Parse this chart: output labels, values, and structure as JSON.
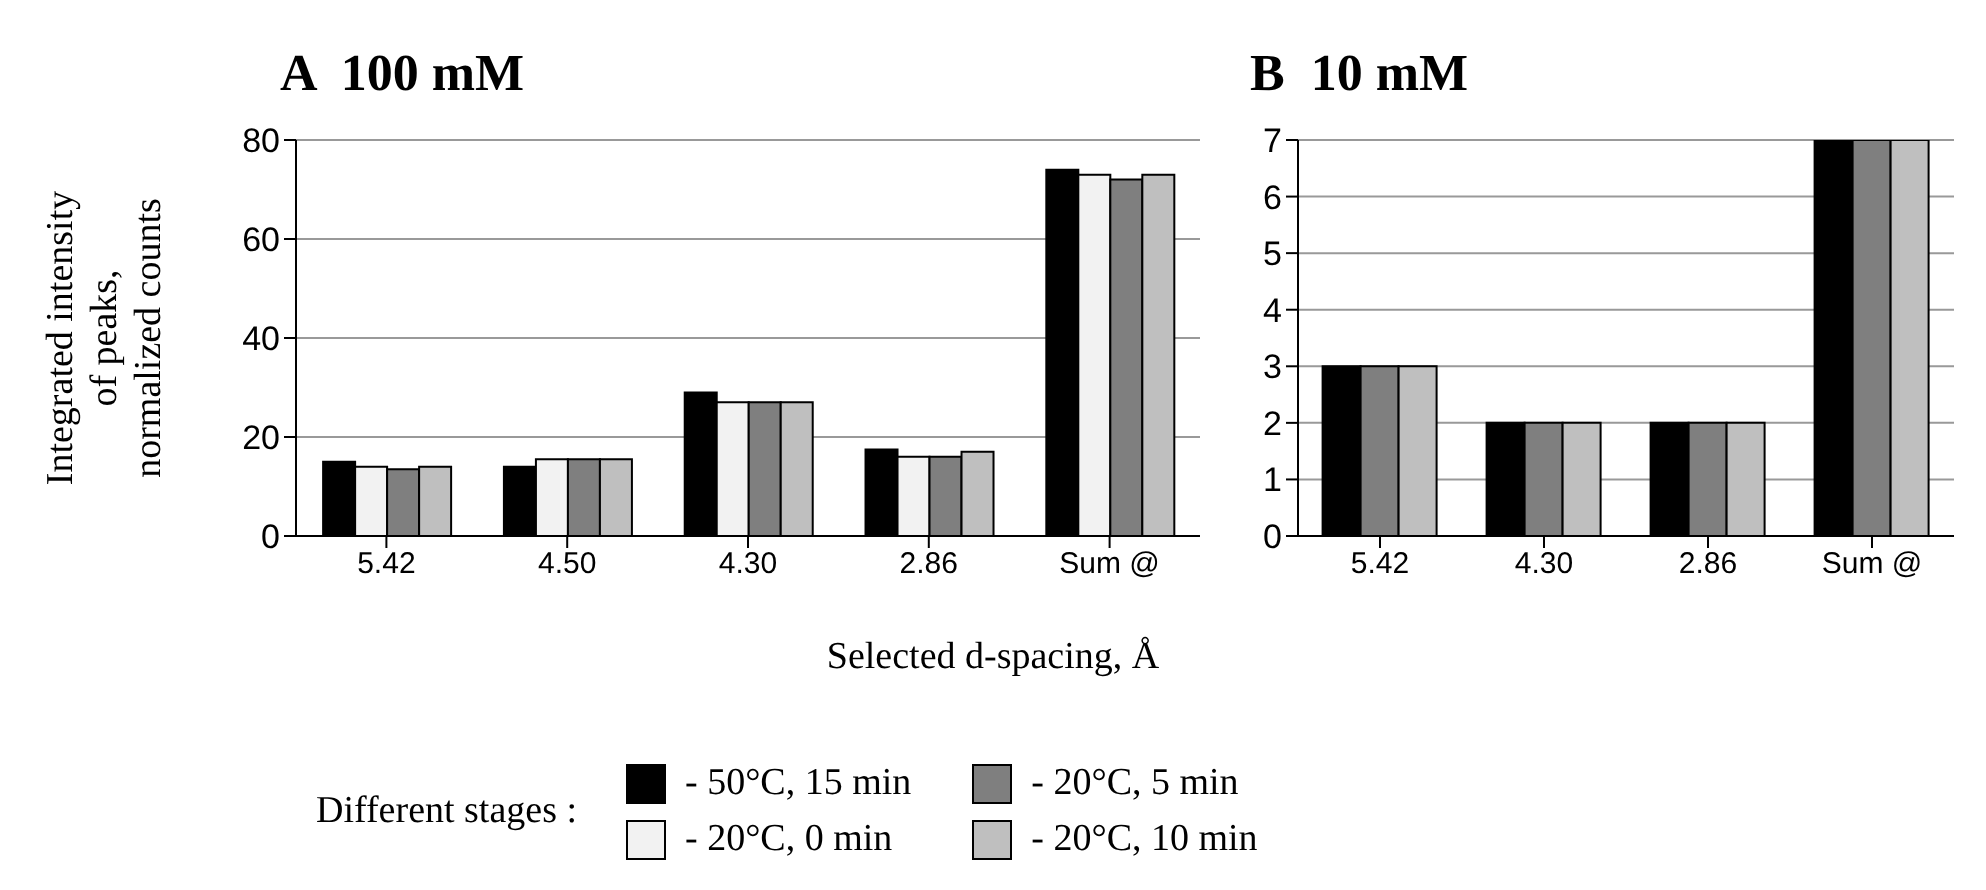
{
  "chart_data": [
    {
      "type": "bar",
      "title": "A  100 mM",
      "ylabel": "Integrated intensity\nof peaks,\nnormalized counts",
      "xlabel": "Selected d-spacing, Å",
      "legend_title": "Different stages :",
      "legend": "bottom",
      "grid": "y",
      "categories": [
        "5.42",
        "4.50",
        "4.30",
        "2.86",
        "Sum @"
      ],
      "ylim": [
        0,
        80
      ],
      "yticks": [
        0,
        20,
        40,
        60,
        80
      ],
      "series": [
        {
          "name": "- 50°C, 15 min",
          "color": "#000000",
          "values": [
            15,
            14,
            29,
            17.5,
            74
          ]
        },
        {
          "name": "- 20°C, 0 min",
          "color": "#f2f2f2",
          "values": [
            14,
            15.5,
            27,
            16,
            73
          ]
        },
        {
          "name": "- 20°C, 5 min",
          "color": "#7f7f7f",
          "values": [
            13.5,
            15.5,
            27,
            16,
            72
          ]
        },
        {
          "name": "- 20°C, 10 min",
          "color": "#bfbfbf",
          "values": [
            14,
            15.5,
            27,
            17,
            73
          ]
        }
      ]
    },
    {
      "type": "bar",
      "title": "B  10 mM",
      "grid": "y",
      "categories": [
        "5.42",
        "4.30",
        "2.86",
        "Sum @"
      ],
      "ylim": [
        0,
        7
      ],
      "yticks": [
        0,
        1,
        2,
        3,
        4,
        5,
        6,
        7
      ],
      "series": [
        {
          "color": "#000000",
          "values": [
            3,
            2,
            2,
            7
          ]
        },
        {
          "color": "#7f7f7f",
          "values": [
            3,
            2,
            2,
            7
          ]
        },
        {
          "color": "#bfbfbf",
          "values": [
            3,
            2,
            2,
            7
          ]
        }
      ]
    }
  ]
}
